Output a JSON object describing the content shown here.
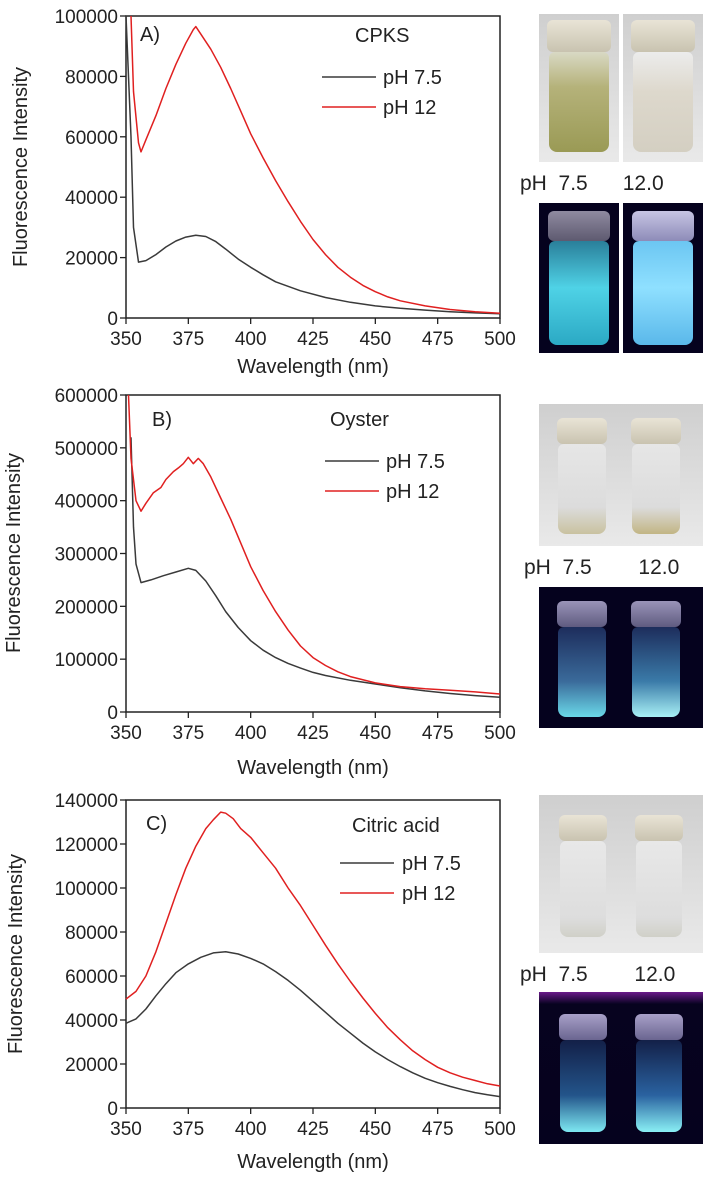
{
  "chart_data": [
    {
      "type": "line",
      "panel": "A)",
      "sample": "CPKS",
      "xlabel": "Wavelength (nm)",
      "ylabel": "Fluorescence Intensity",
      "xlim": [
        350,
        500
      ],
      "ylim": [
        0,
        100000
      ],
      "x_ticks": [
        "350",
        "375",
        "400",
        "425",
        "450",
        "475",
        "500"
      ],
      "y_ticks": [
        "0",
        "20000",
        "40000",
        "60000",
        "80000",
        "100000"
      ],
      "series": [
        {
          "name": "pH 7.5",
          "color": "#3a3a3a",
          "points": [
            [
              350,
              100000
            ],
            [
              352,
              60000
            ],
            [
              353,
              30000
            ],
            [
              355,
              18500
            ],
            [
              358,
              19000
            ],
            [
              362,
              21000
            ],
            [
              366,
              23500
            ],
            [
              370,
              25500
            ],
            [
              374,
              26800
            ],
            [
              378,
              27400
            ],
            [
              382,
              27000
            ],
            [
              386,
              25300
            ],
            [
              390,
              22800
            ],
            [
              395,
              19500
            ],
            [
              400,
              16800
            ],
            [
              405,
              14300
            ],
            [
              410,
              12000
            ],
            [
              420,
              9000
            ],
            [
              430,
              6800
            ],
            [
              440,
              5200
            ],
            [
              450,
              4000
            ],
            [
              460,
              3200
            ],
            [
              470,
              2600
            ],
            [
              480,
              2100
            ],
            [
              490,
              1700
            ],
            [
              500,
              1400
            ]
          ]
        },
        {
          "name": "pH 12",
          "color": "#e02020",
          "points": [
            [
              352,
              100000
            ],
            [
              353,
              75000
            ],
            [
              355,
              58000
            ],
            [
              356,
              55000
            ],
            [
              358,
              59000
            ],
            [
              362,
              67000
            ],
            [
              366,
              76000
            ],
            [
              370,
              84000
            ],
            [
              374,
              91000
            ],
            [
              377,
              95500
            ],
            [
              378,
              96500
            ],
            [
              380,
              94000
            ],
            [
              384,
              89000
            ],
            [
              388,
              83000
            ],
            [
              392,
              76000
            ],
            [
              396,
              68500
            ],
            [
              400,
              61000
            ],
            [
              405,
              53000
            ],
            [
              410,
              45500
            ],
            [
              415,
              38500
            ],
            [
              420,
              32000
            ],
            [
              425,
              26000
            ],
            [
              430,
              21000
            ],
            [
              435,
              16800
            ],
            [
              440,
              13500
            ],
            [
              445,
              10800
            ],
            [
              450,
              8700
            ],
            [
              455,
              7000
            ],
            [
              460,
              5700
            ],
            [
              470,
              4000
            ],
            [
              480,
              2800
            ],
            [
              490,
              2100
            ],
            [
              500,
              1600
            ]
          ]
        }
      ]
    },
    {
      "type": "line",
      "panel": "B)",
      "sample": "Oyster",
      "xlabel": "Wavelength (nm)",
      "ylabel": "Fluorescence Intensity",
      "xlim": [
        350,
        500
      ],
      "ylim": [
        0,
        600000
      ],
      "x_ticks": [
        "350",
        "375",
        "400",
        "425",
        "450",
        "475",
        "500"
      ],
      "y_ticks": [
        "0",
        "100000",
        "200000",
        "300000",
        "400000",
        "500000",
        "600000"
      ],
      "series": [
        {
          "name": "pH 7.5",
          "color": "#3a3a3a",
          "points": [
            [
              352,
              520000
            ],
            [
              353,
              350000
            ],
            [
              354,
              280000
            ],
            [
              356,
              245000
            ],
            [
              360,
              250000
            ],
            [
              365,
              258000
            ],
            [
              370,
              265000
            ],
            [
              375,
              272000
            ],
            [
              378,
              268000
            ],
            [
              382,
              248000
            ],
            [
              386,
              220000
            ],
            [
              390,
              190000
            ],
            [
              395,
              160000
            ],
            [
              400,
              135000
            ],
            [
              405,
              117000
            ],
            [
              410,
              103000
            ],
            [
              415,
              92000
            ],
            [
              420,
              83000
            ],
            [
              425,
              75000
            ],
            [
              430,
              69000
            ],
            [
              440,
              60000
            ],
            [
              450,
              53000
            ],
            [
              460,
              46000
            ],
            [
              470,
              40000
            ],
            [
              480,
              35000
            ],
            [
              490,
              31000
            ],
            [
              500,
              28000
            ]
          ]
        },
        {
          "name": "pH 12",
          "color": "#e02020",
          "points": [
            [
              351,
              600000
            ],
            [
              352,
              480000
            ],
            [
              354,
              400000
            ],
            [
              356,
              380000
            ],
            [
              358,
              395000
            ],
            [
              361,
              415000
            ],
            [
              364,
              425000
            ],
            [
              366,
              440000
            ],
            [
              369,
              455000
            ],
            [
              371,
              462000
            ],
            [
              373,
              470000
            ],
            [
              375,
              482000
            ],
            [
              377,
              470000
            ],
            [
              379,
              480000
            ],
            [
              381,
              470000
            ],
            [
              384,
              445000
            ],
            [
              388,
              405000
            ],
            [
              392,
              365000
            ],
            [
              396,
              320000
            ],
            [
              400,
              275000
            ],
            [
              405,
              230000
            ],
            [
              410,
              190000
            ],
            [
              415,
              155000
            ],
            [
              420,
              125000
            ],
            [
              425,
              103000
            ],
            [
              430,
              88000
            ],
            [
              435,
              76000
            ],
            [
              440,
              67000
            ],
            [
              450,
              55000
            ],
            [
              460,
              48000
            ],
            [
              470,
              44000
            ],
            [
              480,
              41000
            ],
            [
              490,
              38000
            ],
            [
              500,
              34000
            ]
          ]
        }
      ]
    },
    {
      "type": "line",
      "panel": "C)",
      "sample": "Citric acid",
      "xlabel": "Wavelength (nm)",
      "ylabel": "Fluorescence Intensity",
      "xlim": [
        350,
        500
      ],
      "ylim": [
        0,
        140000
      ],
      "x_ticks": [
        "350",
        "375",
        "400",
        "425",
        "450",
        "475",
        "500"
      ],
      "y_ticks": [
        "0",
        "20000",
        "40000",
        "60000",
        "80000",
        "100000",
        "120000",
        "140000"
      ],
      "series": [
        {
          "name": "pH 7.5",
          "color": "#3a3a3a",
          "points": [
            [
              350,
              38500
            ],
            [
              354,
              40500
            ],
            [
              358,
              45000
            ],
            [
              362,
              51000
            ],
            [
              366,
              56500
            ],
            [
              370,
              61500
            ],
            [
              375,
              65500
            ],
            [
              380,
              68500
            ],
            [
              385,
              70500
            ],
            [
              390,
              71000
            ],
            [
              395,
              70000
            ],
            [
              400,
              68000
            ],
            [
              405,
              65500
            ],
            [
              410,
              62000
            ],
            [
              415,
              58000
            ],
            [
              420,
              53500
            ],
            [
              425,
              48500
            ],
            [
              430,
              43500
            ],
            [
              435,
              38500
            ],
            [
              440,
              34000
            ],
            [
              445,
              29500
            ],
            [
              450,
              25500
            ],
            [
              455,
              22000
            ],
            [
              460,
              18800
            ],
            [
              465,
              16000
            ],
            [
              470,
              13500
            ],
            [
              475,
              11500
            ],
            [
              480,
              9800
            ],
            [
              485,
              8300
            ],
            [
              490,
              7000
            ],
            [
              495,
              6000
            ],
            [
              500,
              5200
            ]
          ]
        },
        {
          "name": "pH 12",
          "color": "#e02020",
          "points": [
            [
              350,
              49500
            ],
            [
              354,
              53000
            ],
            [
              358,
              60000
            ],
            [
              362,
              71000
            ],
            [
              366,
              84000
            ],
            [
              370,
              97000
            ],
            [
              374,
              109000
            ],
            [
              378,
              119000
            ],
            [
              382,
              127000
            ],
            [
              385,
              131000
            ],
            [
              388,
              134500
            ],
            [
              390,
              134000
            ],
            [
              393,
              131500
            ],
            [
              396,
              127000
            ],
            [
              400,
              123000
            ],
            [
              405,
              116000
            ],
            [
              410,
              109000
            ],
            [
              415,
              100000
            ],
            [
              420,
              92000
            ],
            [
              425,
              83000
            ],
            [
              430,
              74000
            ],
            [
              435,
              65500
            ],
            [
              440,
              57500
            ],
            [
              445,
              50000
            ],
            [
              450,
              43000
            ],
            [
              455,
              36500
            ],
            [
              460,
              31000
            ],
            [
              465,
              26000
            ],
            [
              470,
              22000
            ],
            [
              475,
              18500
            ],
            [
              480,
              16000
            ],
            [
              485,
              14000
            ],
            [
              490,
              12500
            ],
            [
              495,
              11000
            ],
            [
              500,
              10000
            ]
          ]
        }
      ]
    }
  ],
  "photo_panels": [
    {
      "ph_prefix": "pH",
      "ph_left": "7.5",
      "ph_right": "12.0"
    },
    {
      "ph_prefix": "pH",
      "ph_left": "7.5",
      "ph_right": "12.0"
    },
    {
      "ph_prefix": "pH",
      "ph_left": "7.5",
      "ph_right": "12.0"
    }
  ]
}
